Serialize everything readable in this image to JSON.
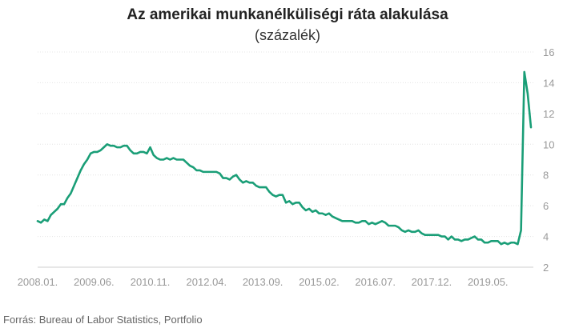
{
  "chart_data": {
    "type": "line",
    "title": "Az amerikai munkanélküliségi ráta alakulása",
    "subtitle": "(százalék)",
    "xlabel": "",
    "ylabel": "",
    "ylim": [
      2,
      16
    ],
    "y_ticks": [
      2,
      4,
      6,
      8,
      10,
      12,
      14,
      16
    ],
    "x_tick_labels": [
      "2008.01.",
      "2009.06.",
      "2010.11.",
      "2012.04.",
      "2013.09.",
      "2015.02.",
      "2016.07.",
      "2017.12.",
      "2019.05."
    ],
    "y_axis_position": "right",
    "grid": "horizontal",
    "legend": "none",
    "line_color": "#1a9e77",
    "series": [
      {
        "start": "2008.01.",
        "frequency": "monthly",
        "values": [
          5.0,
          4.9,
          5.1,
          5.0,
          5.4,
          5.6,
          5.8,
          6.1,
          6.1,
          6.5,
          6.8,
          7.3,
          7.8,
          8.3,
          8.7,
          9.0,
          9.4,
          9.5,
          9.5,
          9.6,
          9.8,
          10.0,
          9.9,
          9.9,
          9.8,
          9.8,
          9.9,
          9.9,
          9.6,
          9.4,
          9.4,
          9.5,
          9.5,
          9.4,
          9.8,
          9.3,
          9.1,
          9.0,
          9.0,
          9.1,
          9.0,
          9.1,
          9.0,
          9.0,
          9.0,
          8.8,
          8.6,
          8.5,
          8.3,
          8.3,
          8.2,
          8.2,
          8.2,
          8.2,
          8.2,
          8.1,
          7.8,
          7.8,
          7.7,
          7.9,
          8.0,
          7.7,
          7.5,
          7.6,
          7.5,
          7.5,
          7.3,
          7.2,
          7.2,
          7.2,
          6.9,
          6.7,
          6.6,
          6.7,
          6.7,
          6.2,
          6.3,
          6.1,
          6.2,
          6.2,
          5.9,
          5.7,
          5.8,
          5.6,
          5.7,
          5.5,
          5.5,
          5.4,
          5.5,
          5.3,
          5.2,
          5.1,
          5.0,
          5.0,
          5.0,
          5.0,
          4.9,
          4.9,
          5.0,
          5.0,
          4.8,
          4.9,
          4.8,
          4.9,
          5.0,
          4.9,
          4.7,
          4.7,
          4.7,
          4.6,
          4.4,
          4.3,
          4.4,
          4.3,
          4.3,
          4.4,
          4.2,
          4.1,
          4.1,
          4.1,
          4.1,
          4.1,
          4.0,
          4.0,
          3.8,
          4.0,
          3.8,
          3.8,
          3.7,
          3.8,
          3.8,
          3.9,
          4.0,
          3.8,
          3.8,
          3.6,
          3.6,
          3.7,
          3.7,
          3.7,
          3.5,
          3.6,
          3.5,
          3.6,
          3.6,
          3.5,
          4.4,
          14.7,
          13.3,
          11.1
        ]
      }
    ]
  },
  "source": "Forrás: Bureau of Labor Statistics, Portfolio"
}
